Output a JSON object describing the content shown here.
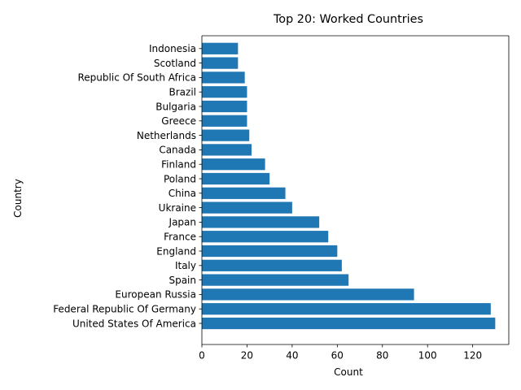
{
  "chart_data": {
    "type": "bar",
    "orientation": "horizontal",
    "title": "Top 20: Worked Countries",
    "xlabel": "Count",
    "ylabel": "Country",
    "xlim": [
      0,
      136
    ],
    "xticks": [
      0,
      20,
      40,
      60,
      80,
      100,
      120
    ],
    "grid": false,
    "bar_color": "#1f77b4",
    "categories": [
      "United States Of America",
      "Federal Republic Of Germany",
      "European Russia",
      "Spain",
      "Italy",
      "England",
      "France",
      "Japan",
      "Ukraine",
      "China",
      "Poland",
      "Finland",
      "Canada",
      "Netherlands",
      "Greece",
      "Bulgaria",
      "Brazil",
      "Republic Of South Africa",
      "Scotland",
      "Indonesia"
    ],
    "values": [
      130,
      128,
      94,
      65,
      62,
      60,
      56,
      52,
      40,
      37,
      30,
      28,
      22,
      21,
      20,
      20,
      20,
      19,
      16,
      16
    ]
  }
}
